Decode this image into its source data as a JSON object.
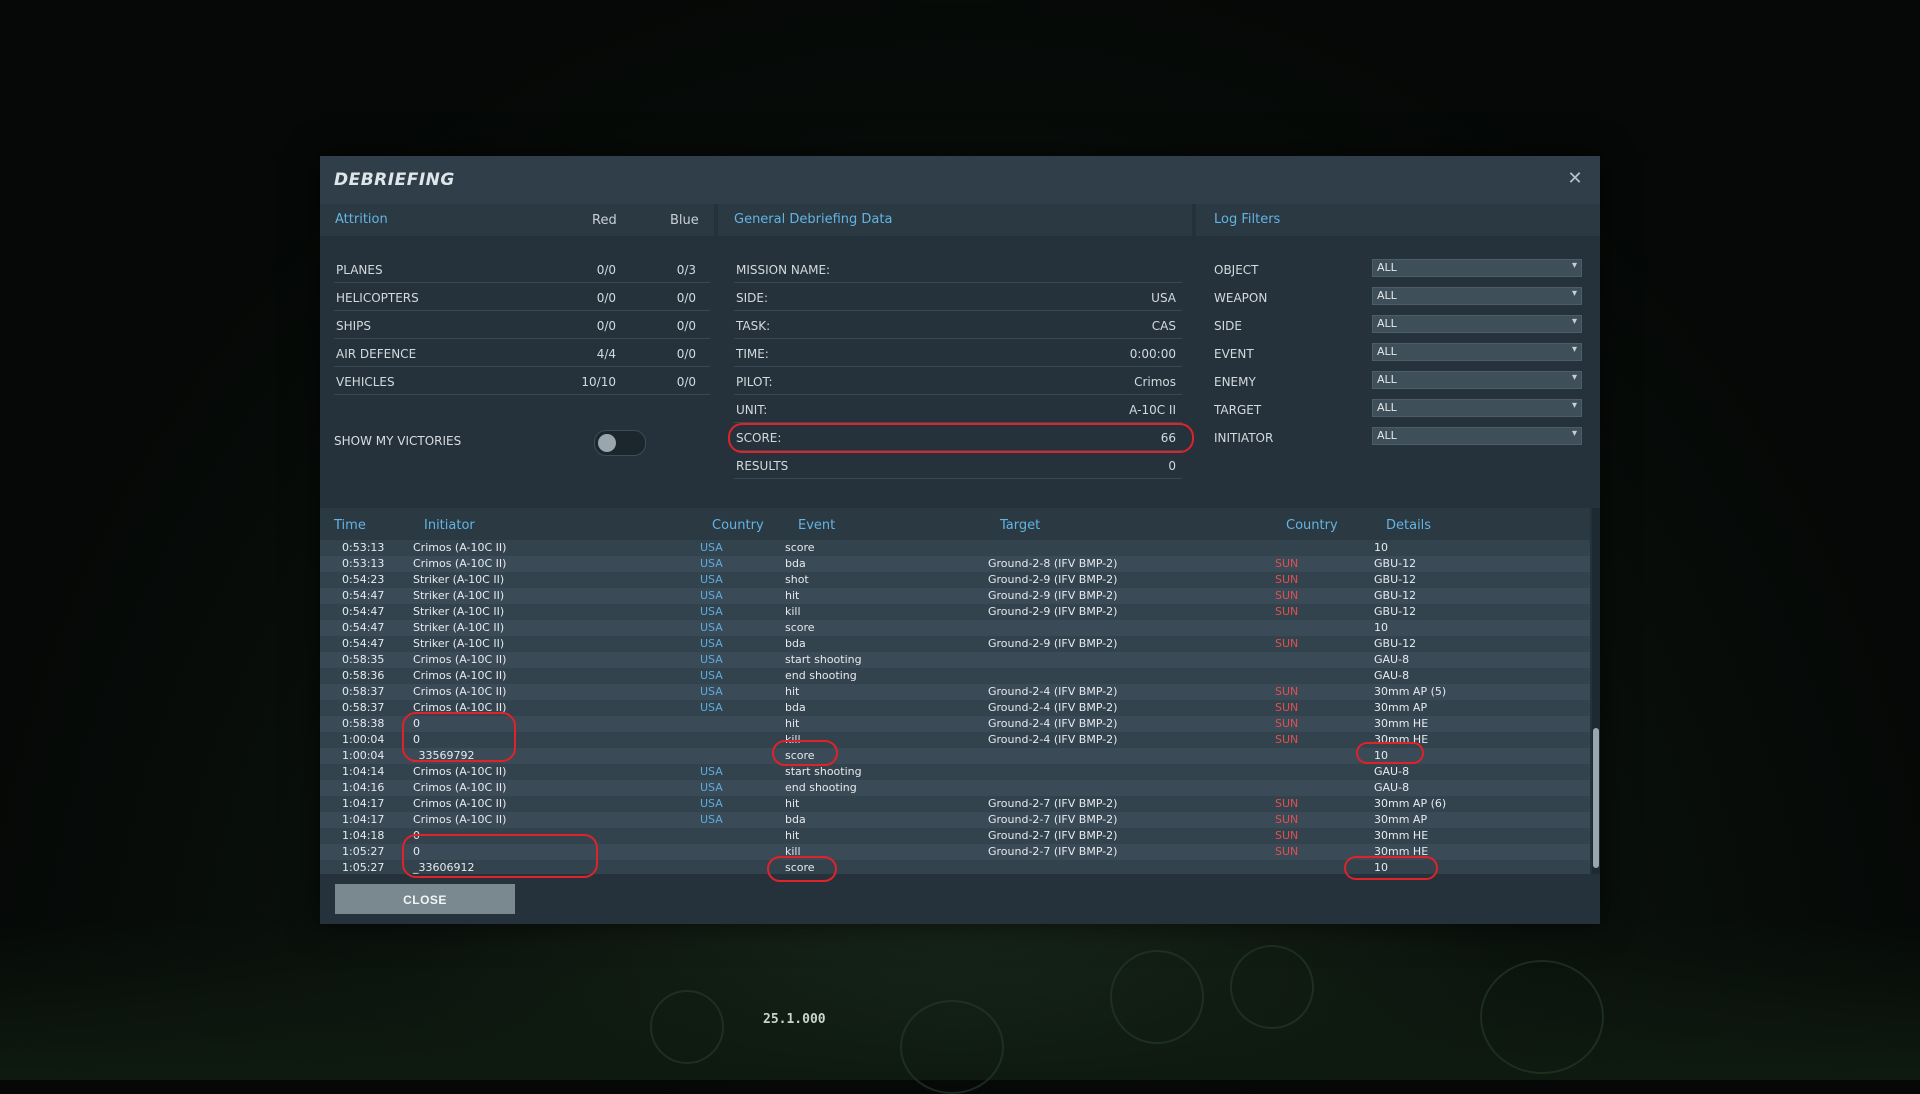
{
  "background": {
    "readout": "25.1.000"
  },
  "dialog": {
    "title": "DEBRIEFING",
    "close_icon": "close-icon"
  },
  "attrition": {
    "heading": "Attrition",
    "col_red": "Red",
    "col_blue": "Blue",
    "rows": [
      {
        "label": "PLANES",
        "red": "0/0",
        "blue": "0/3"
      },
      {
        "label": "HELICOPTERS",
        "red": "0/0",
        "blue": "0/0"
      },
      {
        "label": "SHIPS",
        "red": "0/0",
        "blue": "0/0"
      },
      {
        "label": "AIR DEFENCE",
        "red": "4/4",
        "blue": "0/0"
      },
      {
        "label": "VEHICLES",
        "red": "10/10",
        "blue": "0/0"
      }
    ],
    "show_victories_label": "SHOW MY VICTORIES",
    "show_victories_on": false
  },
  "general": {
    "heading": "General Debriefing Data",
    "rows": [
      {
        "label": "MISSION NAME:",
        "value": ""
      },
      {
        "label": "SIDE:",
        "value": "USA"
      },
      {
        "label": "TASK:",
        "value": "CAS"
      },
      {
        "label": "TIME:",
        "value": "0:00:00"
      },
      {
        "label": "PILOT:",
        "value": "Crimos"
      },
      {
        "label": "UNIT:",
        "value": "A-10C II"
      },
      {
        "label": "SCORE:",
        "value": "66"
      },
      {
        "label": "RESULTS",
        "value": "0"
      }
    ]
  },
  "filters": {
    "heading": "Log Filters",
    "rows": [
      {
        "label": "OBJECT",
        "value": "ALL"
      },
      {
        "label": "WEAPON",
        "value": "ALL"
      },
      {
        "label": "SIDE",
        "value": "ALL"
      },
      {
        "label": "EVENT",
        "value": "ALL"
      },
      {
        "label": "ENEMY",
        "value": "ALL"
      },
      {
        "label": "TARGET",
        "value": "ALL"
      },
      {
        "label": "INITIATOR",
        "value": "ALL"
      }
    ]
  },
  "log": {
    "columns": [
      "Time",
      "Initiator",
      "Country",
      "Event",
      "Target",
      "Country",
      "Details"
    ],
    "rows": [
      {
        "time": "0:53:13",
        "initiator": "Crimos (A-10C II)",
        "country": "USA",
        "event": "score",
        "target": "",
        "tcountry": "",
        "details": "10"
      },
      {
        "time": "0:53:13",
        "initiator": "Crimos (A-10C II)",
        "country": "USA",
        "event": "bda",
        "target": "Ground-2-8 (IFV BMP-2)",
        "tcountry": "SUN",
        "details": "GBU-12"
      },
      {
        "time": "0:54:23",
        "initiator": "Striker (A-10C II)",
        "country": "USA",
        "event": "shot",
        "target": "Ground-2-9 (IFV BMP-2)",
        "tcountry": "SUN",
        "details": "GBU-12"
      },
      {
        "time": "0:54:47",
        "initiator": "Striker (A-10C II)",
        "country": "USA",
        "event": "hit",
        "target": "Ground-2-9 (IFV BMP-2)",
        "tcountry": "SUN",
        "details": "GBU-12"
      },
      {
        "time": "0:54:47",
        "initiator": "Striker (A-10C II)",
        "country": "USA",
        "event": "kill",
        "target": "Ground-2-9 (IFV BMP-2)",
        "tcountry": "SUN",
        "details": "GBU-12"
      },
      {
        "time": "0:54:47",
        "initiator": "Striker (A-10C II)",
        "country": "USA",
        "event": "score",
        "target": "",
        "tcountry": "",
        "details": "10"
      },
      {
        "time": "0:54:47",
        "initiator": "Striker (A-10C II)",
        "country": "USA",
        "event": "bda",
        "target": "Ground-2-9 (IFV BMP-2)",
        "tcountry": "SUN",
        "details": "GBU-12"
      },
      {
        "time": "0:58:35",
        "initiator": "Crimos (A-10C II)",
        "country": "USA",
        "event": "start shooting",
        "target": "",
        "tcountry": "",
        "details": "GAU-8"
      },
      {
        "time": "0:58:36",
        "initiator": "Crimos (A-10C II)",
        "country": "USA",
        "event": "end shooting",
        "target": "",
        "tcountry": "",
        "details": "GAU-8"
      },
      {
        "time": "0:58:37",
        "initiator": "Crimos (A-10C II)",
        "country": "USA",
        "event": "hit",
        "target": "Ground-2-4 (IFV BMP-2)",
        "tcountry": "SUN",
        "details": "30mm AP (5)"
      },
      {
        "time": "0:58:37",
        "initiator": "Crimos (A-10C II)",
        "country": "USA",
        "event": "bda",
        "target": "Ground-2-4 (IFV BMP-2)",
        "tcountry": "SUN",
        "details": "30mm AP"
      },
      {
        "time": "0:58:38",
        "initiator": "0",
        "country": "",
        "event": "hit",
        "target": "Ground-2-4 (IFV BMP-2)",
        "tcountry": "SUN",
        "details": "30mm HE"
      },
      {
        "time": "1:00:04",
        "initiator": "0",
        "country": "",
        "event": "kill",
        "target": "Ground-2-4 (IFV BMP-2)",
        "tcountry": "SUN",
        "details": "30mm HE"
      },
      {
        "time": "1:00:04",
        "initiator": "_33569792",
        "country": "",
        "event": "score",
        "target": "",
        "tcountry": "",
        "details": "10"
      },
      {
        "time": "1:04:14",
        "initiator": "Crimos (A-10C II)",
        "country": "USA",
        "event": "start shooting",
        "target": "",
        "tcountry": "",
        "details": "GAU-8"
      },
      {
        "time": "1:04:16",
        "initiator": "Crimos (A-10C II)",
        "country": "USA",
        "event": "end shooting",
        "target": "",
        "tcountry": "",
        "details": "GAU-8"
      },
      {
        "time": "1:04:17",
        "initiator": "Crimos (A-10C II)",
        "country": "USA",
        "event": "hit",
        "target": "Ground-2-7 (IFV BMP-2)",
        "tcountry": "SUN",
        "details": "30mm AP (6)"
      },
      {
        "time": "1:04:17",
        "initiator": "Crimos (A-10C II)",
        "country": "USA",
        "event": "bda",
        "target": "Ground-2-7 (IFV BMP-2)",
        "tcountry": "SUN",
        "details": "30mm AP"
      },
      {
        "time": "1:04:18",
        "initiator": "0",
        "country": "",
        "event": "hit",
        "target": "Ground-2-7 (IFV BMP-2)",
        "tcountry": "SUN",
        "details": "30mm HE"
      },
      {
        "time": "1:05:27",
        "initiator": "0",
        "country": "",
        "event": "kill",
        "target": "Ground-2-7 (IFV BMP-2)",
        "tcountry": "SUN",
        "details": "30mm HE"
      },
      {
        "time": "1:05:27",
        "initiator": "_33606912",
        "country": "",
        "event": "score",
        "target": "",
        "tcountry": "",
        "details": "10"
      }
    ]
  },
  "footer": {
    "close_label": "CLOSE"
  },
  "colors": {
    "accent": "#63b4e2",
    "usa": "#5aaee0",
    "sun": "#e0504f",
    "annotation": "#e0222a"
  }
}
